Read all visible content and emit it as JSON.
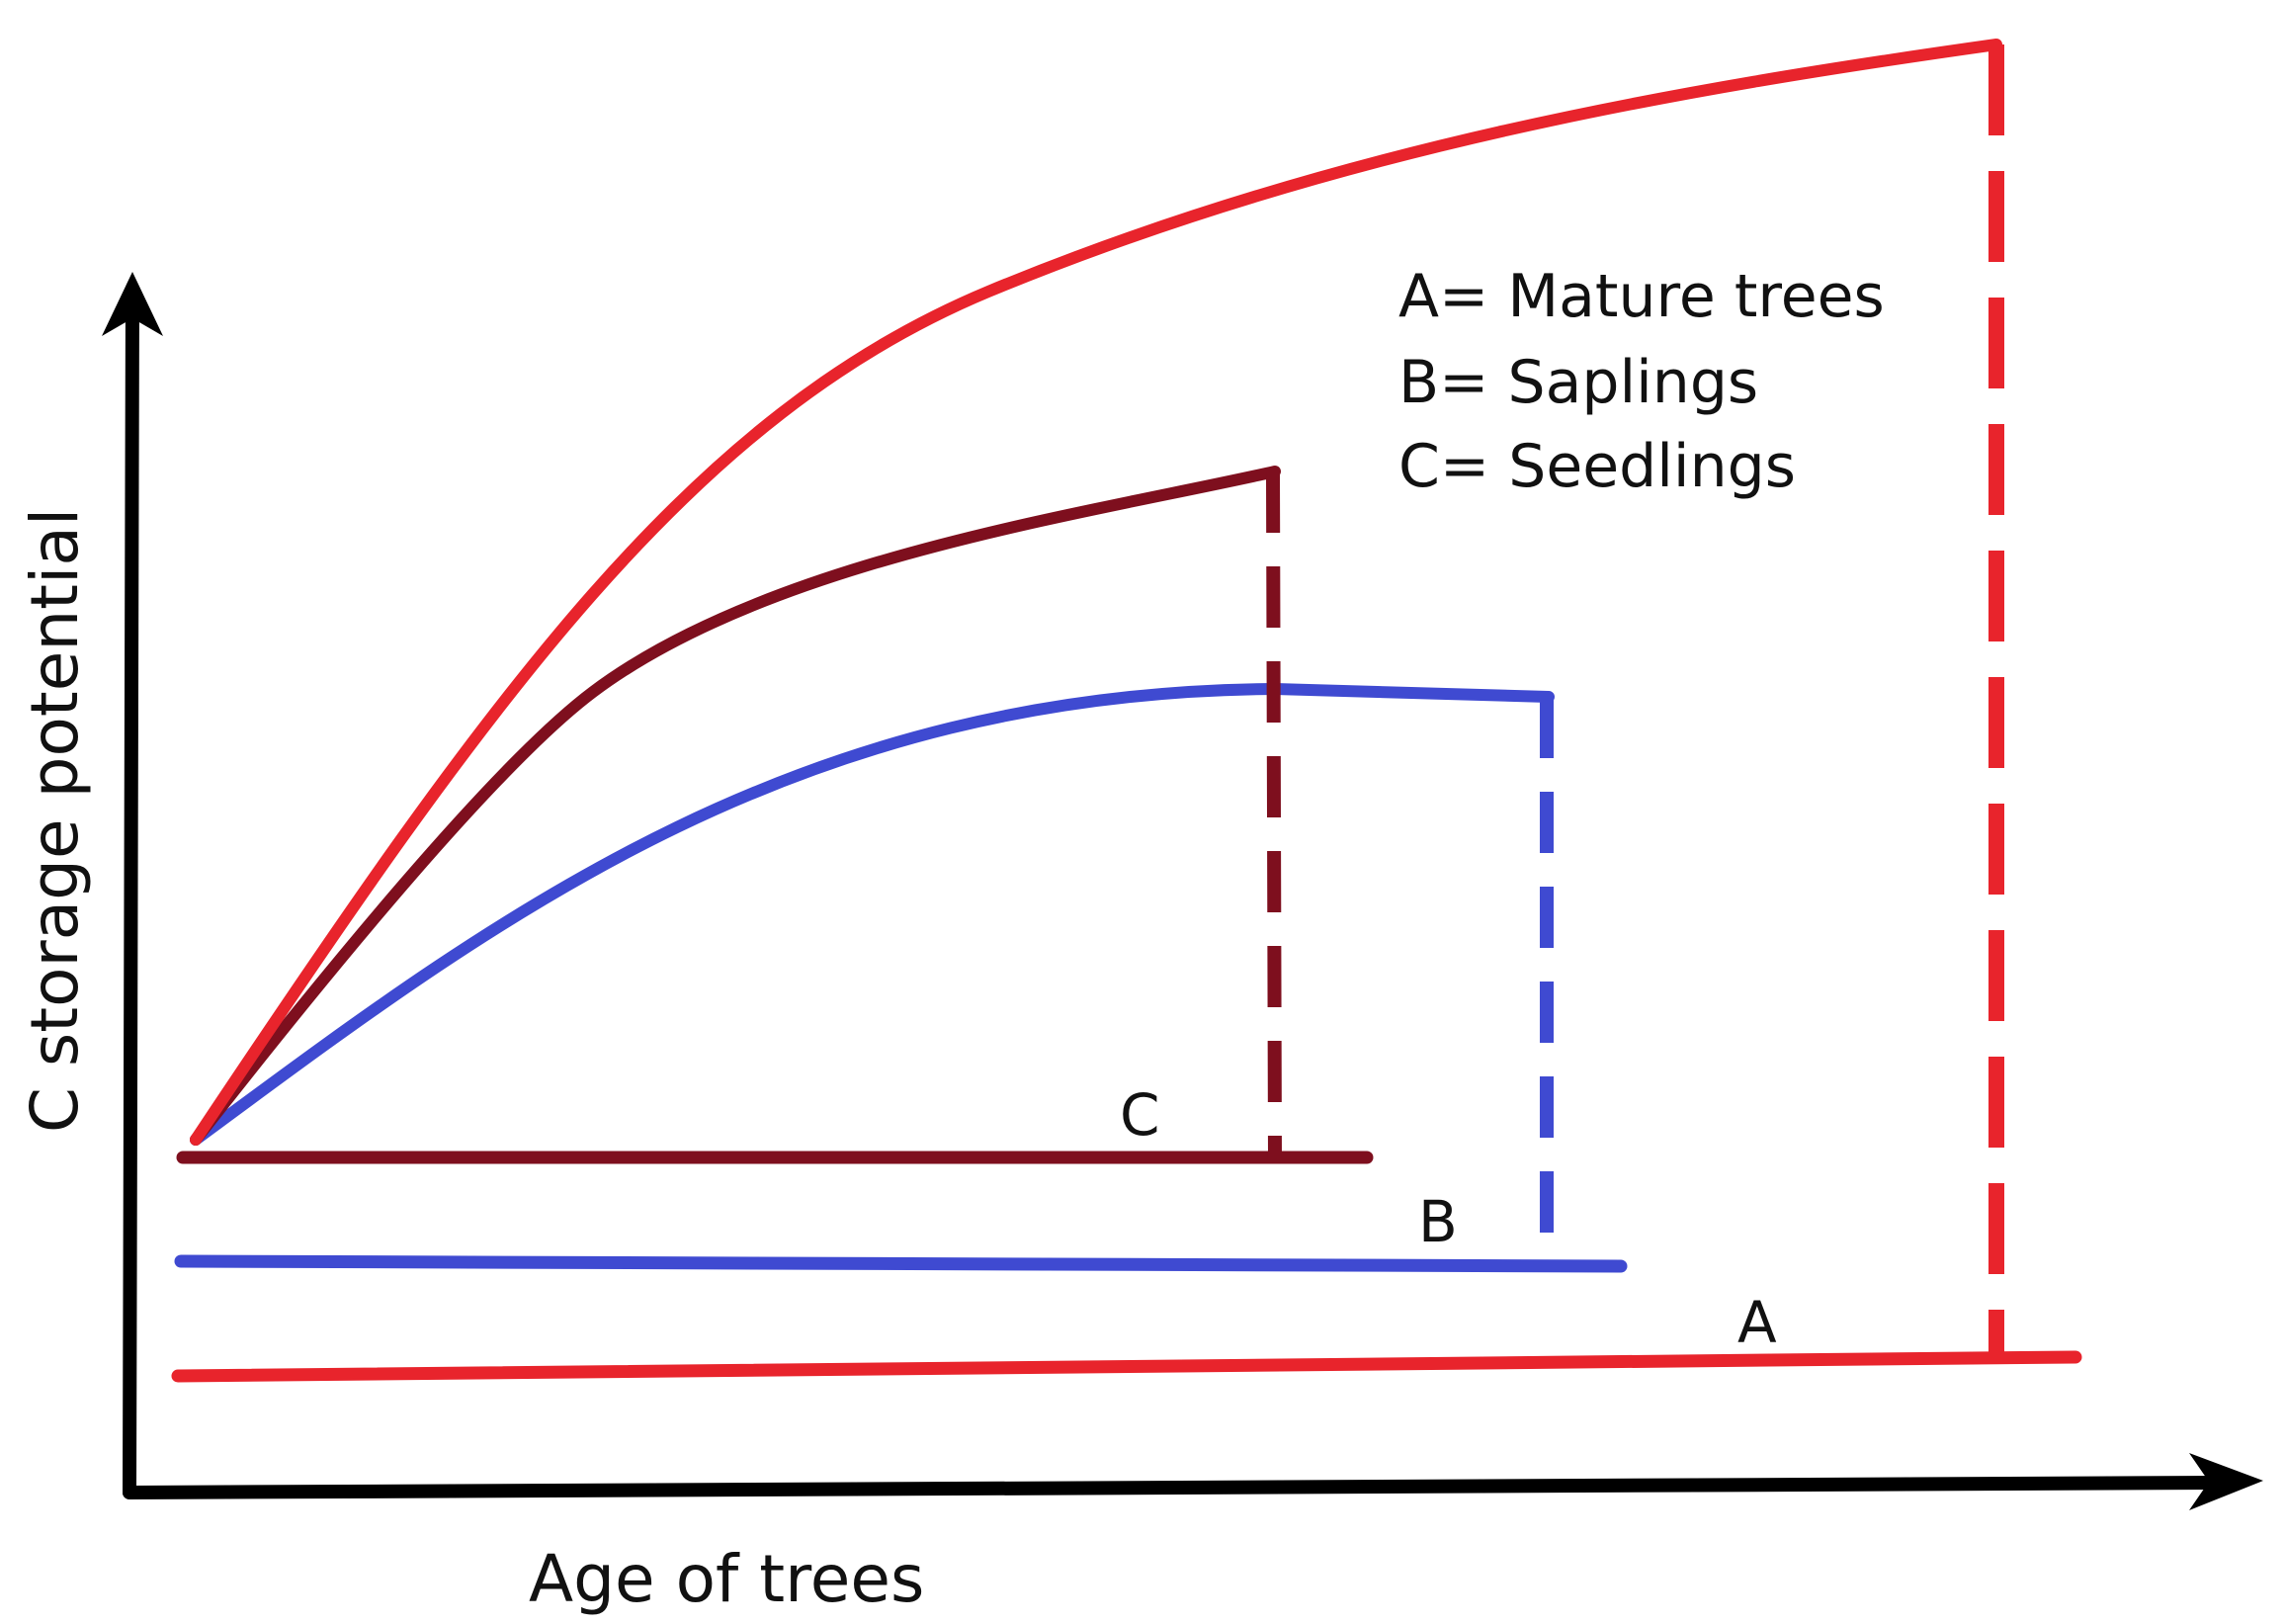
{
  "axes": {
    "y_label": "C storage potential",
    "x_label": "Age of trees"
  },
  "legend": [
    {
      "key": "A",
      "text": "A= Mature trees"
    },
    {
      "key": "B",
      "text": "B= Saplings"
    },
    {
      "key": "C",
      "text": "C= Seedlings"
    }
  ],
  "lines": {
    "A": {
      "tag": "A",
      "color": "#e8242c"
    },
    "B": {
      "tag": "B",
      "color": "#3f4ad1"
    },
    "C": {
      "tag": "C",
      "color": "#7e0f1e"
    }
  },
  "colors": {
    "axis": "#000000",
    "text": "#111111"
  }
}
